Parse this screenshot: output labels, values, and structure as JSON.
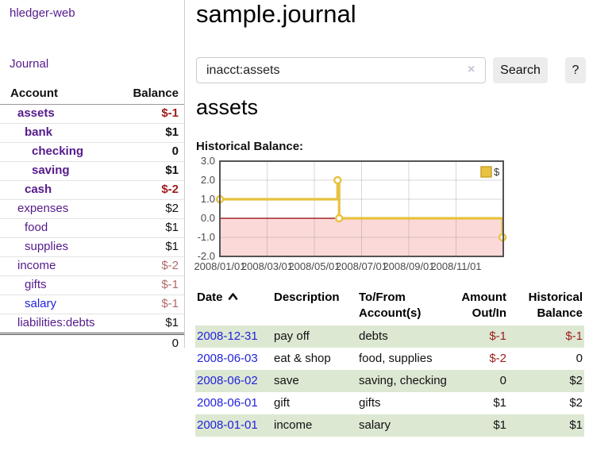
{
  "colors": {
    "link_purple": "#551a8b",
    "link_blue": "#2222dd",
    "negative_strong": "#9e1c1c",
    "negative_muted": "#b06a6a",
    "row_shade_green": "#dde8d3",
    "chart_line_gold": "#e8c240",
    "chart_negative_fill": "#fcd9d9",
    "chart_zero_line": "#8b0000",
    "chart_border": "#545454"
  },
  "sidebar": {
    "brand": "hledger-web",
    "journal_link": "Journal",
    "accounts": {
      "col_account": "Account",
      "col_balance": "Balance",
      "rows": [
        {
          "name": "assets",
          "balance": "$-1",
          "depth": 1,
          "bold": true,
          "balance_class": "neg-strong",
          "link_class": "purple"
        },
        {
          "name": "bank",
          "balance": "$1",
          "depth": 2,
          "bold": true,
          "balance_class": "normal",
          "link_class": "purple"
        },
        {
          "name": "checking",
          "balance": "0",
          "depth": 3,
          "bold": true,
          "balance_class": "normal",
          "link_class": "purple"
        },
        {
          "name": "saving",
          "balance": "$1",
          "depth": 3,
          "bold": true,
          "balance_class": "normal",
          "link_class": "purple"
        },
        {
          "name": "cash",
          "balance": "$-2",
          "depth": 2,
          "bold": true,
          "balance_class": "neg-strong",
          "link_class": "purple"
        },
        {
          "name": "expenses",
          "balance": "$2",
          "depth": 1,
          "bold": false,
          "balance_class": "normal",
          "link_class": "purple"
        },
        {
          "name": "food",
          "balance": "$1",
          "depth": 2,
          "bold": false,
          "balance_class": "normal",
          "link_class": "purple"
        },
        {
          "name": "supplies",
          "balance": "$1",
          "depth": 2,
          "bold": false,
          "balance_class": "normal",
          "link_class": "purple"
        },
        {
          "name": "income",
          "balance": "$-2",
          "depth": 1,
          "bold": false,
          "balance_class": "neg-muted",
          "link_class": "purple"
        },
        {
          "name": "gifts",
          "balance": "$-1",
          "depth": 2,
          "bold": false,
          "balance_class": "neg-muted",
          "link_class": "purple"
        },
        {
          "name": "salary",
          "balance": "$-1",
          "depth": 2,
          "bold": false,
          "balance_class": "neg-muted",
          "link_class": "blue"
        },
        {
          "name": "liabilities:debts",
          "balance": "$1",
          "depth": 1,
          "bold": false,
          "balance_class": "normal",
          "link_class": "purple"
        }
      ],
      "total": "0"
    }
  },
  "main": {
    "title": "sample.journal",
    "search": {
      "value": "inacct:assets",
      "clear_icon": "×",
      "search_button": "Search",
      "help_button": "?"
    },
    "account_heading": "assets",
    "chart_title": "Historical Balance:"
  },
  "chart_data": {
    "type": "line",
    "title": "Historical Balance",
    "step": true,
    "legend": [
      {
        "label": "$",
        "color": "#e8c240"
      }
    ],
    "legend_position": "top-right",
    "series": [
      {
        "name": "$",
        "points": [
          {
            "date": "2008-01-01",
            "value": 1
          },
          {
            "date": "2008-06-01",
            "value": 2
          },
          {
            "date": "2008-06-03",
            "value": 0
          },
          {
            "date": "2008-12-31",
            "value": -1
          }
        ]
      }
    ],
    "x_range": [
      "2008-01-01",
      "2009-01-01"
    ],
    "x_tick_labels": [
      "2008/01/01",
      "2008/03/01",
      "2008/05/01",
      "2008/07/01",
      "2008/09/01",
      "2008/11/01"
    ],
    "x_tick_month_offsets": [
      0,
      2,
      4,
      6,
      8,
      10
    ],
    "y_ticks": [
      3.0,
      2.0,
      1.0,
      0.0,
      -1.0,
      -2.0
    ],
    "y_tick_labels": [
      "3.0",
      "2.0",
      "1.0",
      "0.0",
      "-1.0",
      "-2.0"
    ],
    "ylim": [
      -2,
      3
    ],
    "grid": true,
    "negative_region_shaded": true
  },
  "register": {
    "headers": {
      "date": "Date",
      "description": "Description",
      "accounts": "To/From Account(s)",
      "amount": "Amount Out/In",
      "balance": "Historical Balance"
    },
    "rows": [
      {
        "date": "2008-12-31",
        "description": "pay off",
        "accounts": "debts",
        "amount": "$-1",
        "balance": "$-1",
        "amount_negative": true,
        "balance_negative": true,
        "shaded": true
      },
      {
        "date": "2008-06-03",
        "description": "eat & shop",
        "accounts": "food, supplies",
        "amount": "$-2",
        "balance": "0",
        "amount_negative": true,
        "balance_negative": false,
        "shaded": false
      },
      {
        "date": "2008-06-02",
        "description": "save",
        "accounts": "saving, checking",
        "amount": "0",
        "balance": "$2",
        "amount_negative": false,
        "balance_negative": false,
        "shaded": true
      },
      {
        "date": "2008-06-01",
        "description": "gift",
        "accounts": "gifts",
        "amount": "$1",
        "balance": "$2",
        "amount_negative": false,
        "balance_negative": false,
        "shaded": false
      },
      {
        "date": "2008-01-01",
        "description": "income",
        "accounts": "salary",
        "amount": "$1",
        "balance": "$1",
        "amount_negative": false,
        "balance_negative": false,
        "shaded": true
      }
    ]
  }
}
